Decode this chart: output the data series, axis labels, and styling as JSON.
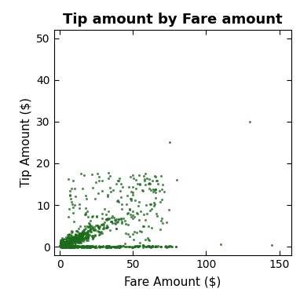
{
  "title": "Tip amount by Fare amount",
  "xlabel": "Fare Amount ($)",
  "ylabel": "Tip Amount ($)",
  "xlim": [
    -4,
    158
  ],
  "ylim": [
    -2,
    52
  ],
  "xticks": [
    0,
    50,
    100,
    150
  ],
  "yticks": [
    0,
    10,
    20,
    30,
    40,
    50
  ],
  "point_color": "#1a6b1a",
  "point_size": 5,
  "alpha": 0.75,
  "background_color": "#ffffff",
  "seed": 12345,
  "title_fontsize": 13,
  "axis_fontsize": 11,
  "tick_fontsize": 10
}
